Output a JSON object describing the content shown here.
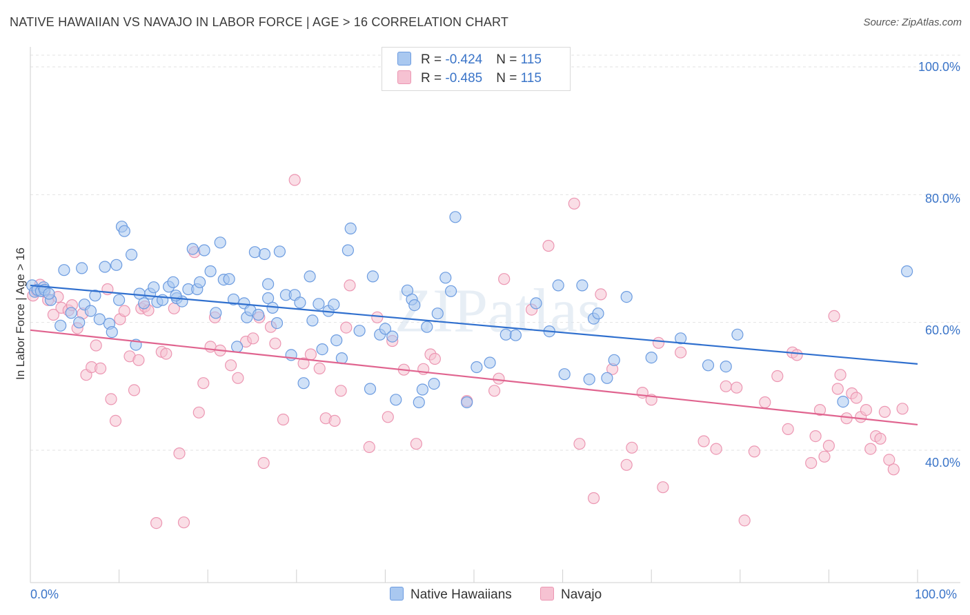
{
  "title": "NATIVE HAWAIIAN VS NAVAJO IN LABOR FORCE | AGE > 16 CORRELATION CHART",
  "source": "Source: ZipAtlas.com",
  "watermark": "ZIPatlas",
  "legend": {
    "series1": {
      "r_label": "R = ",
      "r_value": "-0.424",
      "n_label": "N = ",
      "n_value": "115"
    },
    "series2": {
      "r_label": "R = ",
      "r_value": "-0.485",
      "n_label": "N = ",
      "n_value": "115"
    }
  },
  "colors": {
    "hawaiian_fill": "#a9c8f0",
    "hawaiian_stroke": "#6b9be0",
    "hawaiian_line": "#2f6fce",
    "navajo_fill": "#f6c2d2",
    "navajo_stroke": "#ec96b2",
    "navajo_line": "#e0648f",
    "tick_text": "#3a74c8"
  },
  "chart_data": {
    "type": "scatter",
    "xlabel": "",
    "ylabel": "In Labor Force | Age > 16",
    "xlim": [
      0,
      100
    ],
    "ylim": [
      20,
      100
    ],
    "x_tick_labels": [
      "0.0%",
      "100.0%"
    ],
    "y_ticks": [
      40,
      60,
      80,
      100
    ],
    "y_tick_labels": [
      "40.0%",
      "60.0%",
      "80.0%",
      "100.0%"
    ],
    "grid": true,
    "legend_position": "top-center",
    "series": [
      {
        "name": "Native Hawaiians",
        "r": -0.424,
        "n": 115,
        "trend": {
          "x": [
            0,
            100
          ],
          "y": [
            65.8,
            53.5
          ]
        },
        "points": [
          [
            0.2,
            65.8
          ],
          [
            0.5,
            64.8
          ],
          [
            0.8,
            65.1
          ],
          [
            1.2,
            64.9
          ],
          [
            1.5,
            65.5
          ],
          [
            2.3,
            63.5
          ],
          [
            3.4,
            59.5
          ],
          [
            3.8,
            68.2
          ],
          [
            4.6,
            61.5
          ],
          [
            5.5,
            60.0
          ],
          [
            5.8,
            68.5
          ],
          [
            6.1,
            62.8
          ],
          [
            6.8,
            61.8
          ],
          [
            7.3,
            64.2
          ],
          [
            7.8,
            60.5
          ],
          [
            8.4,
            68.7
          ],
          [
            8.9,
            59.8
          ],
          [
            9.2,
            58.5
          ],
          [
            9.7,
            69.0
          ],
          [
            10.3,
            75.0
          ],
          [
            10.6,
            74.3
          ],
          [
            11.4,
            70.6
          ],
          [
            11.9,
            56.5
          ],
          [
            12.3,
            64.5
          ],
          [
            12.8,
            63.0
          ],
          [
            13.5,
            64.5
          ],
          [
            13.9,
            65.5
          ],
          [
            14.3,
            63.2
          ],
          [
            14.9,
            63.5
          ],
          [
            15.6,
            65.6
          ],
          [
            16.1,
            66.3
          ],
          [
            16.5,
            63.8
          ],
          [
            17.1,
            63.3
          ],
          [
            17.8,
            65.2
          ],
          [
            18.3,
            71.5
          ],
          [
            18.8,
            65.2
          ],
          [
            19.1,
            66.3
          ],
          [
            19.6,
            71.3
          ],
          [
            20.3,
            68.0
          ],
          [
            20.9,
            61.5
          ],
          [
            21.4,
            72.5
          ],
          [
            21.8,
            66.7
          ],
          [
            22.4,
            66.8
          ],
          [
            22.9,
            63.6
          ],
          [
            23.3,
            56.2
          ],
          [
            24.1,
            63.0
          ],
          [
            24.4,
            60.8
          ],
          [
            24.8,
            61.9
          ],
          [
            25.3,
            71.0
          ],
          [
            25.7,
            61.2
          ],
          [
            26.4,
            70.7
          ],
          [
            26.8,
            63.8
          ],
          [
            27.3,
            62.3
          ],
          [
            27.8,
            59.9
          ],
          [
            28.1,
            71.1
          ],
          [
            28.8,
            64.3
          ],
          [
            29.4,
            54.9
          ],
          [
            29.8,
            64.3
          ],
          [
            30.4,
            63.1
          ],
          [
            30.8,
            50.5
          ],
          [
            31.5,
            67.2
          ],
          [
            31.8,
            60.3
          ],
          [
            32.5,
            62.9
          ],
          [
            32.9,
            55.8
          ],
          [
            33.6,
            61.8
          ],
          [
            34.2,
            62.8
          ],
          [
            34.5,
            57.2
          ],
          [
            35.1,
            54.4
          ],
          [
            35.8,
            71.3
          ],
          [
            36.1,
            74.7
          ],
          [
            37.1,
            58.7
          ],
          [
            38.3,
            49.6
          ],
          [
            38.6,
            67.2
          ],
          [
            39.4,
            58.1
          ],
          [
            40.0,
            59.0
          ],
          [
            40.8,
            57.8
          ],
          [
            41.2,
            47.9
          ],
          [
            42.5,
            65.0
          ],
          [
            43.0,
            63.6
          ],
          [
            43.3,
            62.7
          ],
          [
            43.8,
            47.5
          ],
          [
            44.2,
            49.5
          ],
          [
            44.7,
            59.3
          ],
          [
            45.5,
            50.4
          ],
          [
            45.9,
            61.4
          ],
          [
            46.8,
            67.0
          ],
          [
            47.4,
            64.9
          ],
          [
            47.9,
            76.5
          ],
          [
            49.2,
            47.5
          ],
          [
            50.3,
            53.0
          ],
          [
            51.8,
            53.7
          ],
          [
            53.6,
            58.1
          ],
          [
            54.7,
            58.0
          ],
          [
            57.0,
            63.0
          ],
          [
            58.5,
            58.6
          ],
          [
            59.5,
            65.8
          ],
          [
            60.2,
            51.9
          ],
          [
            62.2,
            65.8
          ],
          [
            63.0,
            51.1
          ],
          [
            63.5,
            60.6
          ],
          [
            64.0,
            61.4
          ],
          [
            65.0,
            51.3
          ],
          [
            65.8,
            54.1
          ],
          [
            67.2,
            64.0
          ],
          [
            70.0,
            54.5
          ],
          [
            73.3,
            57.5
          ],
          [
            76.4,
            53.3
          ],
          [
            78.4,
            53.1
          ],
          [
            79.7,
            58.1
          ],
          [
            91.6,
            47.6
          ],
          [
            98.8,
            68.0
          ],
          [
            1.6,
            65.1
          ],
          [
            2.1,
            64.5
          ],
          [
            10.0,
            63.5
          ],
          [
            16.4,
            64.2
          ],
          [
            26.8,
            66.0
          ]
        ]
      },
      {
        "name": "Navajo",
        "r": -0.485,
        "n": 115,
        "trend": {
          "x": [
            0,
            100
          ],
          "y": [
            58.8,
            44.0
          ]
        },
        "points": [
          [
            0.3,
            64.2
          ],
          [
            0.7,
            65.0
          ],
          [
            1.1,
            65.9
          ],
          [
            1.6,
            64.8
          ],
          [
            2.0,
            63.5
          ],
          [
            2.6,
            61.2
          ],
          [
            3.1,
            64.0
          ],
          [
            3.5,
            62.3
          ],
          [
            4.3,
            61.9
          ],
          [
            4.7,
            62.7
          ],
          [
            5.3,
            59.1
          ],
          [
            5.9,
            61.4
          ],
          [
            6.3,
            51.8
          ],
          [
            6.9,
            53.0
          ],
          [
            7.4,
            56.4
          ],
          [
            7.9,
            52.8
          ],
          [
            8.7,
            65.2
          ],
          [
            9.1,
            48.0
          ],
          [
            9.6,
            44.6
          ],
          [
            10.1,
            60.5
          ],
          [
            10.6,
            61.8
          ],
          [
            11.2,
            54.7
          ],
          [
            11.7,
            49.4
          ],
          [
            12.2,
            54.1
          ],
          [
            12.5,
            62.2
          ],
          [
            12.9,
            62.5
          ],
          [
            13.3,
            61.9
          ],
          [
            14.2,
            28.6
          ],
          [
            14.8,
            55.4
          ],
          [
            15.3,
            55.1
          ],
          [
            16.2,
            62.2
          ],
          [
            16.8,
            39.5
          ],
          [
            17.3,
            28.7
          ],
          [
            18.5,
            71.0
          ],
          [
            19.0,
            45.9
          ],
          [
            19.5,
            50.5
          ],
          [
            20.3,
            56.2
          ],
          [
            20.8,
            60.8
          ],
          [
            21.4,
            55.6
          ],
          [
            22.6,
            53.3
          ],
          [
            23.4,
            51.3
          ],
          [
            24.3,
            57.0
          ],
          [
            25.1,
            57.5
          ],
          [
            25.8,
            60.8
          ],
          [
            26.3,
            38.0
          ],
          [
            27.1,
            59.3
          ],
          [
            27.6,
            56.7
          ],
          [
            28.5,
            44.8
          ],
          [
            29.8,
            82.3
          ],
          [
            30.8,
            53.6
          ],
          [
            31.6,
            55.0
          ],
          [
            32.6,
            52.8
          ],
          [
            33.3,
            45.0
          ],
          [
            34.3,
            44.6
          ],
          [
            35.0,
            49.3
          ],
          [
            35.6,
            59.2
          ],
          [
            36.0,
            65.8
          ],
          [
            38.2,
            40.5
          ],
          [
            39.1,
            60.8
          ],
          [
            40.3,
            45.2
          ],
          [
            40.8,
            57.1
          ],
          [
            42.1,
            52.6
          ],
          [
            43.5,
            41.0
          ],
          [
            44.3,
            52.7
          ],
          [
            45.1,
            55.0
          ],
          [
            45.6,
            54.3
          ],
          [
            49.2,
            47.7
          ],
          [
            52.3,
            49.3
          ],
          [
            52.8,
            51.2
          ],
          [
            53.4,
            66.8
          ],
          [
            56.5,
            62.0
          ],
          [
            58.4,
            72.0
          ],
          [
            61.3,
            78.6
          ],
          [
            61.9,
            41.0
          ],
          [
            63.5,
            32.5
          ],
          [
            64.3,
            64.4
          ],
          [
            65.6,
            52.7
          ],
          [
            67.2,
            37.7
          ],
          [
            67.8,
            40.4
          ],
          [
            69.0,
            49.0
          ],
          [
            70.0,
            47.9
          ],
          [
            70.8,
            56.8
          ],
          [
            71.3,
            34.2
          ],
          [
            73.3,
            55.3
          ],
          [
            75.9,
            41.4
          ],
          [
            77.3,
            40.2
          ],
          [
            78.4,
            50.0
          ],
          [
            79.6,
            49.8
          ],
          [
            80.5,
            29.0
          ],
          [
            81.6,
            39.8
          ],
          [
            82.8,
            47.5
          ],
          [
            84.2,
            51.6
          ],
          [
            85.4,
            43.3
          ],
          [
            85.9,
            55.3
          ],
          [
            86.4,
            54.9
          ],
          [
            88.0,
            38.0
          ],
          [
            88.5,
            42.2
          ],
          [
            89.0,
            46.3
          ],
          [
            89.5,
            39.0
          ],
          [
            90.0,
            40.7
          ],
          [
            90.6,
            61.0
          ],
          [
            91.0,
            49.6
          ],
          [
            91.3,
            51.8
          ],
          [
            92.0,
            45.0
          ],
          [
            92.6,
            48.9
          ],
          [
            93.1,
            48.2
          ],
          [
            93.6,
            45.2
          ],
          [
            94.2,
            46.3
          ],
          [
            94.7,
            40.2
          ],
          [
            95.3,
            42.2
          ],
          [
            95.8,
            41.8
          ],
          [
            96.3,
            46.0
          ],
          [
            96.8,
            38.5
          ],
          [
            97.3,
            37.0
          ],
          [
            98.3,
            46.5
          ]
        ]
      }
    ]
  }
}
